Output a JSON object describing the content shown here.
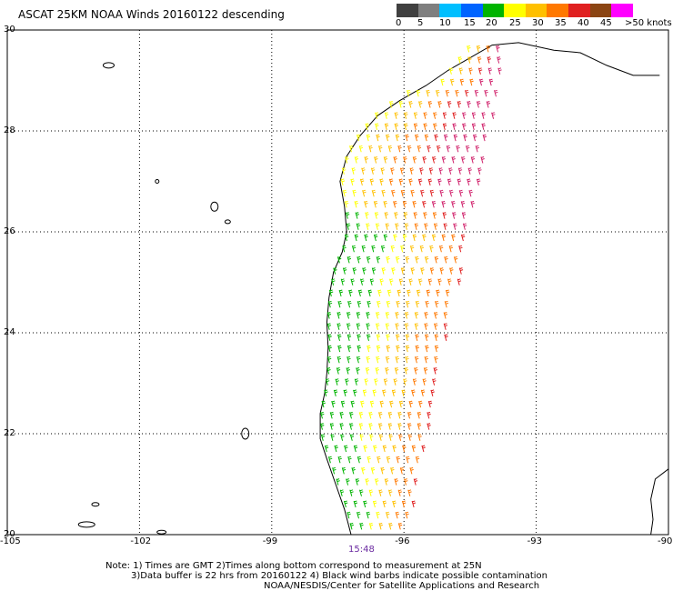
{
  "title": "ASCAT 25KM NOAA Winds 20160122 descending",
  "scale": {
    "labels": [
      "0",
      "5",
      "10",
      "15",
      "20",
      "25",
      "30",
      "35",
      "40",
      "45",
      ">50 knots"
    ],
    "colors": [
      "#404040",
      "#7f7f7f",
      "#00bfff",
      "#0064ff",
      "#00b400",
      "#ffff00",
      "#ffc000",
      "#ff7800",
      "#e02020",
      "#8b4513",
      "#ff00ff",
      "#3c0078"
    ]
  },
  "map": {
    "lat_labels": [
      "30",
      "28",
      "26",
      "24",
      "22",
      "20"
    ],
    "lon_labels": [
      "-105",
      "-102",
      "-99",
      "-96",
      "-93",
      "-90"
    ],
    "lat_range": [
      20,
      30
    ],
    "lon_range": [
      -105,
      -90
    ],
    "gridlines": "dotted",
    "coastline_color": "#000000"
  },
  "time_label": "15:48",
  "notes": {
    "line1": "Note: 1) Times are GMT 2)Times along bottom correspond to measurement at 25N",
    "line2": "3)Data buffer is 22 hrs from 20160122 4) Black wind barbs indicate possible contamination",
    "line3": "NOAA/NESDIS/Center for Satellite Applications and Research"
  }
}
